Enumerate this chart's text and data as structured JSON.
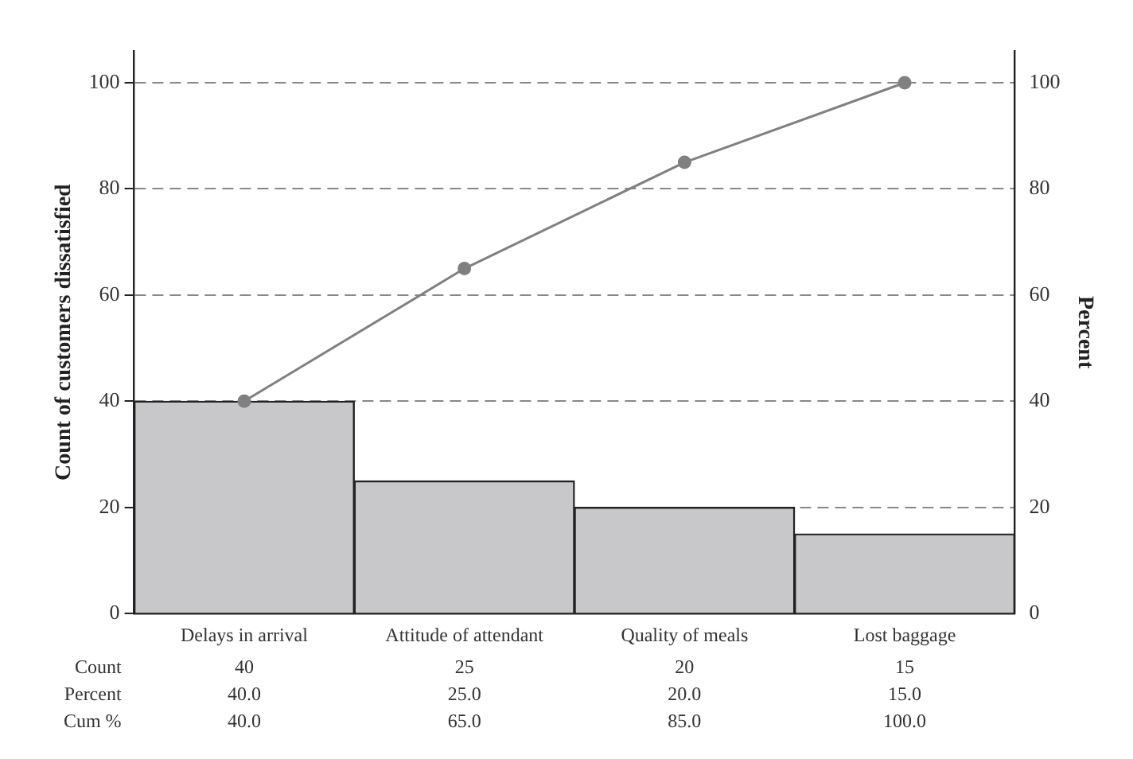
{
  "chart_data": {
    "type": "bar",
    "ylabel": "Count of customers dissatisfied",
    "y2label": "Percent",
    "categories": [
      "Delays in arrival",
      "Attitude of attendant",
      "Quality of meals",
      "Lost baggage"
    ],
    "series": [
      {
        "color": "#c8c8ca",
        "values": [
          40,
          25,
          20,
          15
        ]
      },
      {
        "type": "line",
        "axis": "y2",
        "color": "#808080",
        "values": [
          40,
          65,
          85,
          100
        ]
      }
    ],
    "annotations": [
      "Count",
      "40",
      "25",
      "20",
      "15",
      "Percent",
      "40.0",
      "25.0",
      "20.0",
      "15.0",
      "Cum %",
      "40.0",
      "65.0",
      "85.0",
      "100.0"
    ],
    "ylim": [
      0,
      106
    ],
    "yticks": [
      0,
      20,
      40,
      60,
      80,
      100
    ],
    "y2lim": [
      0,
      106
    ],
    "y2ticks": [
      0,
      20,
      40,
      60,
      80,
      100
    ],
    "grid": "y",
    "marker": "circle",
    "line_style": "solid"
  }
}
